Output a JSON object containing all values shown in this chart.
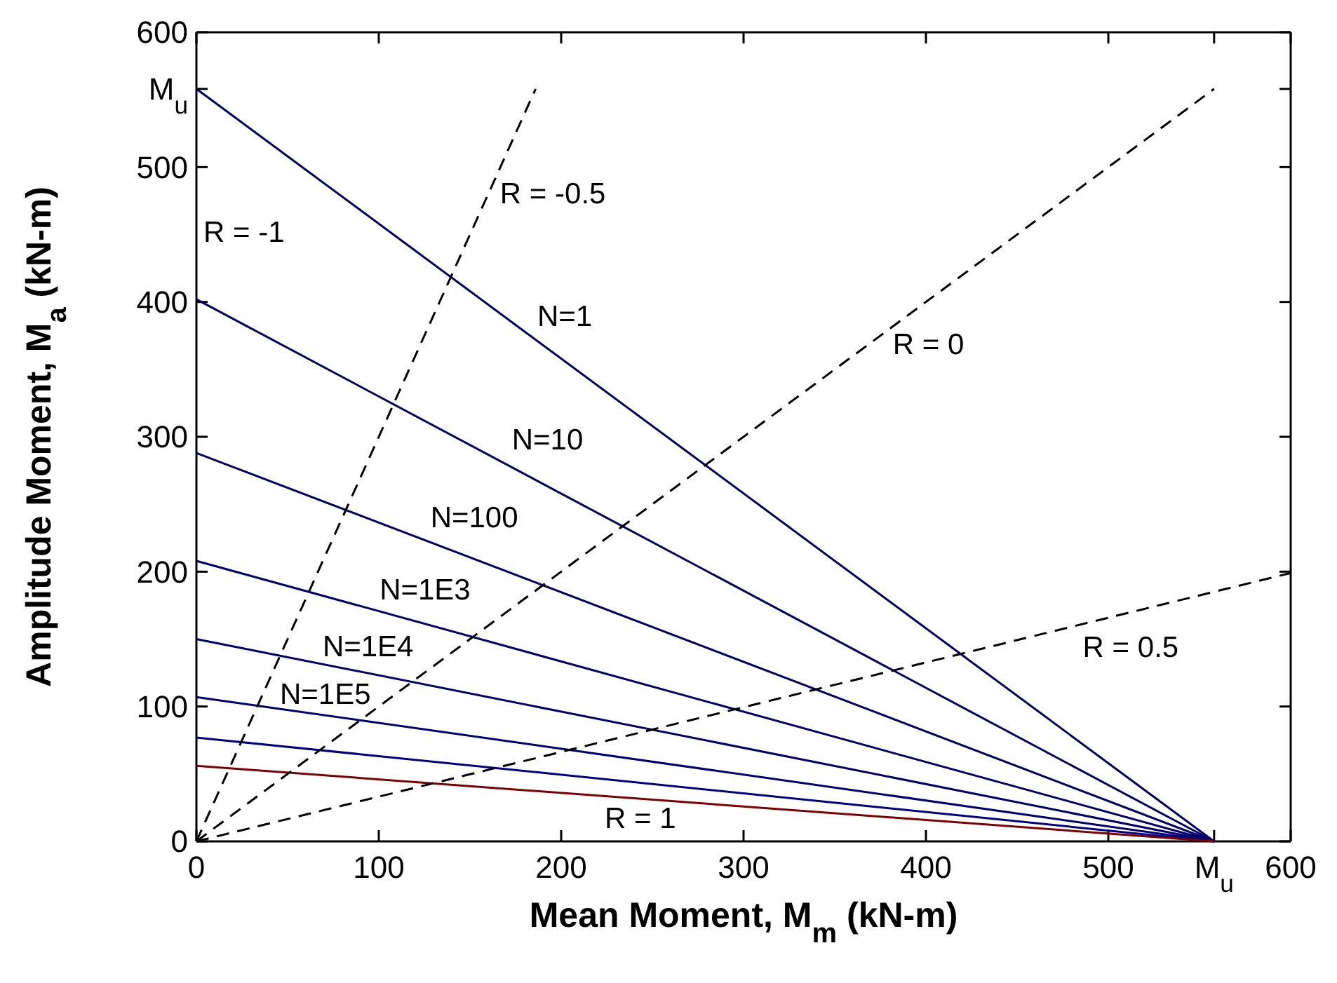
{
  "chart_data": {
    "type": "line",
    "xlabel": "Mean Moment, M$_{m}$ (kN-m)",
    "ylabel": "Amplitude Moment, M$_{a}$ (kN-m)",
    "xlim": [
      0,
      600
    ],
    "ylim": [
      0,
      600
    ],
    "xticks": [
      0,
      100,
      200,
      300,
      400,
      500,
      {
        "value": 558,
        "label": "M$_{u}$"
      },
      600
    ],
    "yticks": [
      0,
      100,
      200,
      300,
      400,
      500,
      {
        "value": 558,
        "label": "M$_{u}$"
      },
      600
    ],
    "series": [
      {
        "name": "N=1",
        "color": "#000066",
        "x": [
          0,
          558
        ],
        "values": [
          558,
          0
        ],
        "line_style": "solid"
      },
      {
        "name": "N=10",
        "color": "#000066",
        "x": [
          0,
          558
        ],
        "values": [
          402,
          0
        ],
        "line_style": "solid"
      },
      {
        "name": "N=100",
        "color": "#000066",
        "x": [
          0,
          558
        ],
        "values": [
          288,
          0
        ],
        "line_style": "solid"
      },
      {
        "name": "N=1E3",
        "color": "#000070",
        "x": [
          0,
          558
        ],
        "values": [
          208,
          0
        ],
        "line_style": "solid"
      },
      {
        "name": "N=1E4",
        "color": "#000070",
        "x": [
          0,
          558
        ],
        "values": [
          150,
          0
        ],
        "line_style": "solid"
      },
      {
        "name": "N=1E5",
        "color": "#00007a",
        "x": [
          0,
          558
        ],
        "values": [
          107,
          0
        ],
        "line_style": "solid"
      },
      {
        "color": "#00008b",
        "x": [
          0,
          558
        ],
        "values": [
          77,
          0
        ],
        "line_style": "solid"
      },
      {
        "color": "#800000",
        "x": [
          0,
          558
        ],
        "values": [
          56,
          0
        ],
        "line_style": "solid"
      },
      {
        "name": "R = -0.5",
        "color": "#000000",
        "x": [
          0,
          186
        ],
        "values": [
          0,
          558
        ],
        "line_style": "dashed"
      },
      {
        "name": "R = 0",
        "color": "#000000",
        "x": [
          0,
          558
        ],
        "values": [
          0,
          558
        ],
        "line_style": "dashed"
      },
      {
        "name": "R = 0.5",
        "color": "#000000",
        "x": [
          0,
          600
        ],
        "values": [
          0,
          199
        ],
        "line_style": "dashed"
      }
    ],
    "annotations": [
      "R = -1",
      "R = 1"
    ]
  }
}
